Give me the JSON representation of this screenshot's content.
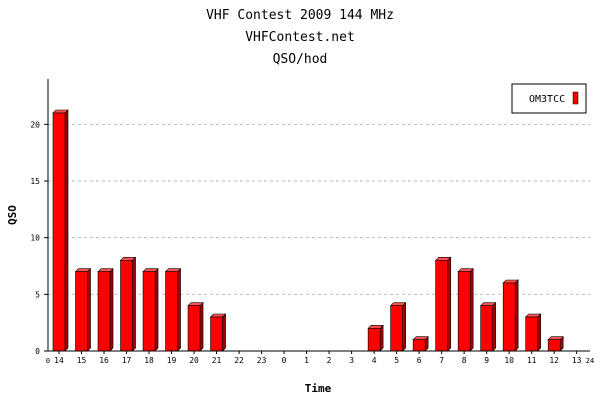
{
  "chart_data": {
    "type": "bar",
    "title": "VHF Contest 2009 144 MHz",
    "subtitle": "VHFContest.net",
    "subtitle2": "QSO/hod",
    "xlabel": "Time",
    "ylabel": "QSO",
    "ylim": [
      0,
      24
    ],
    "yticks": [
      0,
      5,
      10,
      15,
      20
    ],
    "grid": true,
    "legend_position": "top-right",
    "categories": [
      "14",
      "15",
      "16",
      "17",
      "18",
      "19",
      "20",
      "21",
      "22",
      "23",
      "0",
      "1",
      "2",
      "3",
      "4",
      "5",
      "6",
      "7",
      "8",
      "9",
      "10",
      "11",
      "12",
      "13"
    ],
    "x_edge_labels": [
      "0",
      "24"
    ],
    "series": [
      {
        "name": "OM3TCC",
        "color": "#ff0000",
        "values": [
          21,
          7,
          7,
          8,
          7,
          7,
          4,
          3,
          0,
          0,
          0,
          0,
          0,
          0,
          2,
          4,
          1,
          8,
          7,
          4,
          6,
          3,
          1,
          0
        ]
      }
    ]
  }
}
